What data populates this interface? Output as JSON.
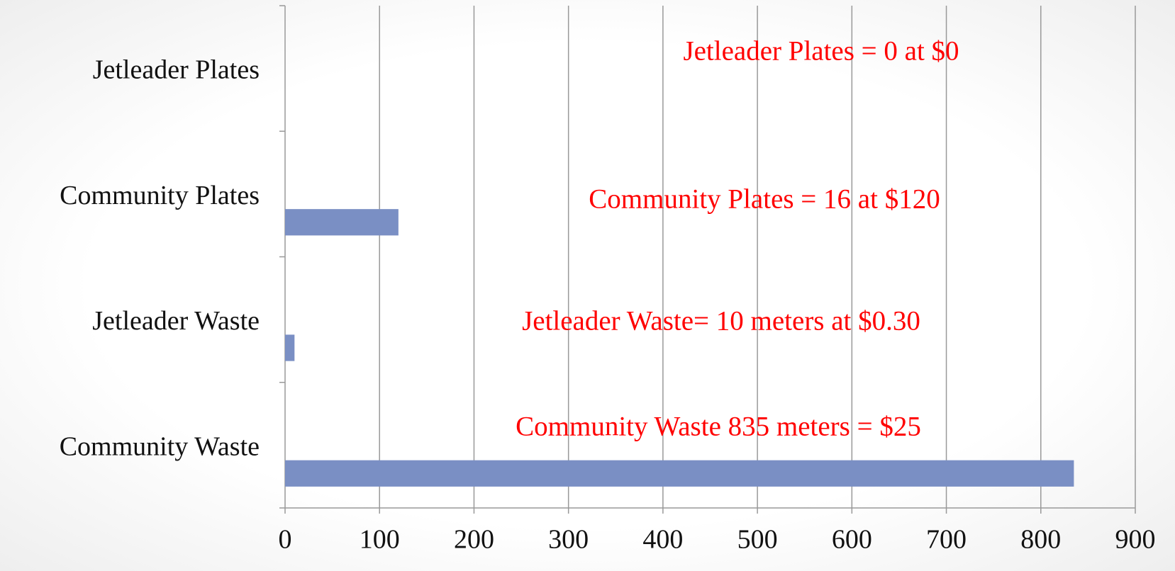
{
  "chart_data": {
    "type": "bar",
    "orientation": "horizontal",
    "categories": [
      "Jetleader Plates",
      "Community Plates",
      "Jetleader Waste",
      "Community Waste"
    ],
    "values": [
      0,
      120,
      10,
      835
    ],
    "color": "#7a8fc4",
    "xlim": [
      0,
      900
    ],
    "xticks": [
      0,
      100,
      200,
      300,
      400,
      500,
      600,
      700,
      800,
      900
    ],
    "grid": true,
    "annotations": [
      "Jetleader Plates = 0 at $0",
      "Community Plates = 16 at $120",
      "Jetleader Waste= 10 meters at $0.30",
      "Community Waste 835 meters = $25"
    ]
  }
}
